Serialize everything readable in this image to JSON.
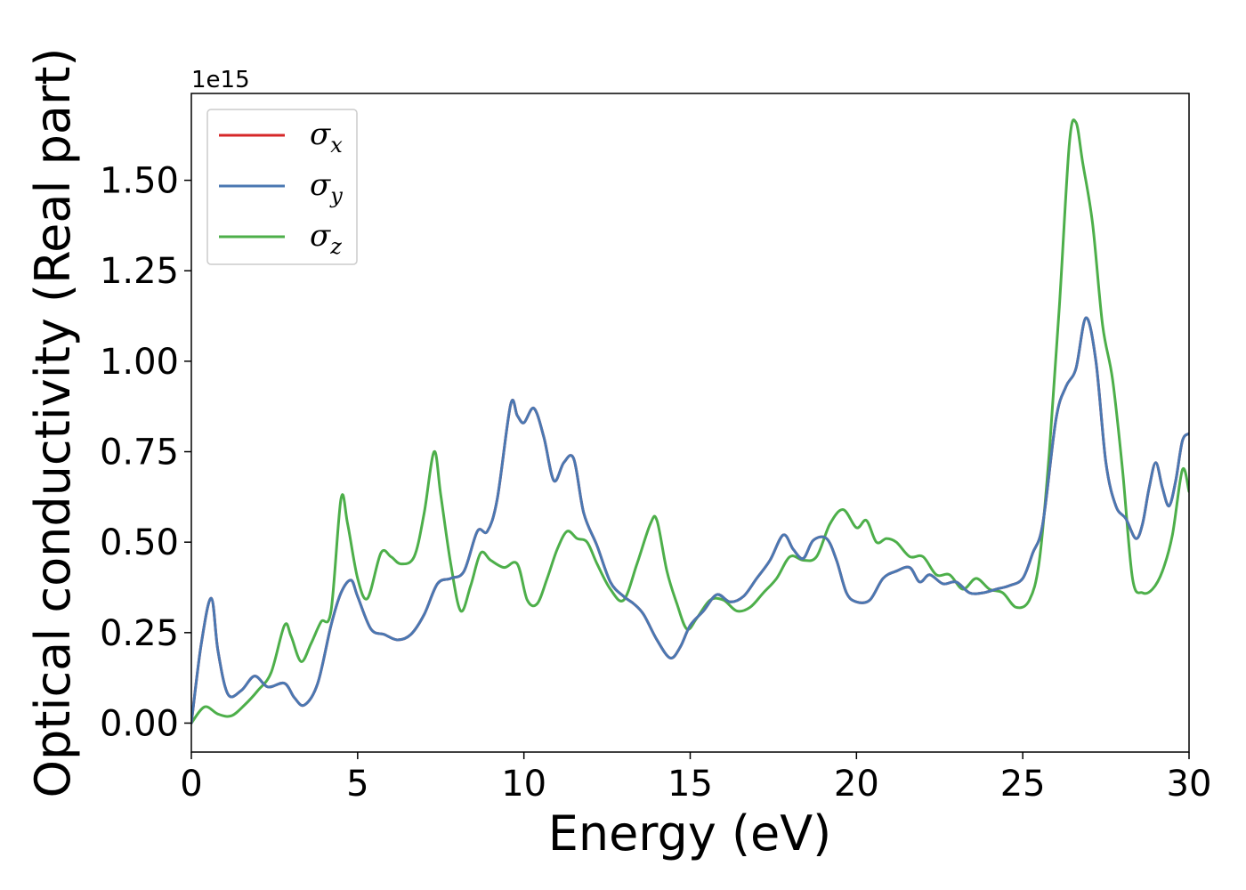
{
  "chart_data": {
    "type": "line",
    "xlabel": "Energy (eV)",
    "ylabel": "Optical conductivity (Real part)",
    "offset_text": "1e15",
    "xlim": [
      0,
      30
    ],
    "ylim": [
      -0.08,
      1.74
    ],
    "x_ticks": [
      0,
      5,
      10,
      15,
      20,
      25,
      30
    ],
    "x_tick_labels": [
      "0",
      "5",
      "10",
      "15",
      "20",
      "25",
      "30"
    ],
    "y_ticks": [
      0,
      0.25,
      0.5,
      0.75,
      1.0,
      1.25,
      1.5
    ],
    "y_tick_labels": [
      "0.00",
      "0.25",
      "0.50",
      "0.75",
      "1.00",
      "1.25",
      "1.50"
    ],
    "grid": false,
    "legend_position": "top-left",
    "series": [
      {
        "name": "σ",
        "subscript": "x",
        "color": "#d62728",
        "x": [
          0,
          0.3,
          0.6,
          0.8,
          1.1,
          1.5,
          1.9,
          2.3,
          2.8,
          3.1,
          3.4,
          3.8,
          4.2,
          4.5,
          4.8,
          5.0,
          5.4,
          5.8,
          6.2,
          6.6,
          7.0,
          7.4,
          7.8,
          8.2,
          8.6,
          8.9,
          9.2,
          9.6,
          9.8,
          10.0,
          10.3,
          10.6,
          10.9,
          11.2,
          11.5,
          11.8,
          12.2,
          12.6,
          13.0,
          13.3,
          13.6,
          14.0,
          14.4,
          14.7,
          15.0,
          15.4,
          15.8,
          16.2,
          16.6,
          17.0,
          17.4,
          17.8,
          18.1,
          18.4,
          18.7,
          19.1,
          19.4,
          19.7,
          20.0,
          20.4,
          20.8,
          21.2,
          21.6,
          21.9,
          22.2,
          22.6,
          23.0,
          23.4,
          23.8,
          24.2,
          24.6,
          25.0,
          25.3,
          25.6,
          26.0,
          26.3,
          26.6,
          26.9,
          27.2,
          27.5,
          27.8,
          28.1,
          28.4,
          28.6,
          28.8,
          29.0,
          29.2,
          29.4,
          29.6,
          29.8,
          30.0
        ],
        "y": [
          0.0,
          0.22,
          0.345,
          0.2,
          0.08,
          0.09,
          0.13,
          0.1,
          0.11,
          0.07,
          0.05,
          0.11,
          0.27,
          0.36,
          0.395,
          0.35,
          0.26,
          0.245,
          0.23,
          0.245,
          0.3,
          0.385,
          0.4,
          0.42,
          0.53,
          0.53,
          0.62,
          0.88,
          0.85,
          0.83,
          0.87,
          0.79,
          0.67,
          0.72,
          0.73,
          0.58,
          0.49,
          0.39,
          0.35,
          0.33,
          0.3,
          0.23,
          0.18,
          0.21,
          0.27,
          0.31,
          0.355,
          0.335,
          0.35,
          0.4,
          0.45,
          0.52,
          0.48,
          0.455,
          0.505,
          0.51,
          0.45,
          0.36,
          0.335,
          0.34,
          0.4,
          0.42,
          0.43,
          0.39,
          0.41,
          0.385,
          0.39,
          0.36,
          0.36,
          0.37,
          0.38,
          0.4,
          0.47,
          0.55,
          0.84,
          0.93,
          0.98,
          1.12,
          1.0,
          0.72,
          0.6,
          0.565,
          0.51,
          0.55,
          0.65,
          0.72,
          0.65,
          0.6,
          0.67,
          0.78,
          0.8
        ]
      },
      {
        "name": "σ",
        "subscript": "y",
        "color": "#4a78b2",
        "x": [
          0,
          0.3,
          0.6,
          0.8,
          1.1,
          1.5,
          1.9,
          2.3,
          2.8,
          3.1,
          3.4,
          3.8,
          4.2,
          4.5,
          4.8,
          5.0,
          5.4,
          5.8,
          6.2,
          6.6,
          7.0,
          7.4,
          7.8,
          8.2,
          8.6,
          8.9,
          9.2,
          9.6,
          9.8,
          10.0,
          10.3,
          10.6,
          10.9,
          11.2,
          11.5,
          11.8,
          12.2,
          12.6,
          13.0,
          13.3,
          13.6,
          14.0,
          14.4,
          14.7,
          15.0,
          15.4,
          15.8,
          16.2,
          16.6,
          17.0,
          17.4,
          17.8,
          18.1,
          18.4,
          18.7,
          19.1,
          19.4,
          19.7,
          20.0,
          20.4,
          20.8,
          21.2,
          21.6,
          21.9,
          22.2,
          22.6,
          23.0,
          23.4,
          23.8,
          24.2,
          24.6,
          25.0,
          25.3,
          25.6,
          26.0,
          26.3,
          26.6,
          26.9,
          27.2,
          27.5,
          27.8,
          28.1,
          28.4,
          28.6,
          28.8,
          29.0,
          29.2,
          29.4,
          29.6,
          29.8,
          30.0
        ],
        "y": [
          0.0,
          0.22,
          0.345,
          0.2,
          0.08,
          0.09,
          0.13,
          0.1,
          0.11,
          0.07,
          0.05,
          0.11,
          0.27,
          0.36,
          0.395,
          0.35,
          0.26,
          0.245,
          0.23,
          0.245,
          0.3,
          0.385,
          0.4,
          0.42,
          0.53,
          0.53,
          0.62,
          0.88,
          0.85,
          0.83,
          0.87,
          0.79,
          0.67,
          0.72,
          0.73,
          0.58,
          0.49,
          0.39,
          0.35,
          0.33,
          0.3,
          0.23,
          0.18,
          0.21,
          0.27,
          0.31,
          0.355,
          0.335,
          0.35,
          0.4,
          0.45,
          0.52,
          0.48,
          0.455,
          0.505,
          0.51,
          0.45,
          0.36,
          0.335,
          0.34,
          0.4,
          0.42,
          0.43,
          0.39,
          0.41,
          0.385,
          0.39,
          0.36,
          0.36,
          0.37,
          0.38,
          0.4,
          0.47,
          0.55,
          0.84,
          0.93,
          0.98,
          1.12,
          1.0,
          0.72,
          0.6,
          0.565,
          0.51,
          0.55,
          0.65,
          0.72,
          0.65,
          0.6,
          0.67,
          0.78,
          0.8
        ]
      },
      {
        "name": "σ",
        "subscript": "z",
        "color": "#4daf4a",
        "x": [
          0,
          0.4,
          0.8,
          1.2,
          1.6,
          2.0,
          2.4,
          2.8,
          3.0,
          3.3,
          3.6,
          3.9,
          4.2,
          4.5,
          4.7,
          5.0,
          5.3,
          5.7,
          6.0,
          6.3,
          6.7,
          7.0,
          7.3,
          7.5,
          7.8,
          8.1,
          8.4,
          8.7,
          9.0,
          9.4,
          9.8,
          10.1,
          10.4,
          10.7,
          11.0,
          11.3,
          11.6,
          11.9,
          12.2,
          12.6,
          13.0,
          13.4,
          13.8,
          14.0,
          14.3,
          14.6,
          14.9,
          15.2,
          15.6,
          16.0,
          16.4,
          16.8,
          17.2,
          17.6,
          18.0,
          18.4,
          18.8,
          19.2,
          19.6,
          20.0,
          20.3,
          20.6,
          20.9,
          21.2,
          21.6,
          22.0,
          22.4,
          22.8,
          23.2,
          23.6,
          24.0,
          24.4,
          24.8,
          25.2,
          25.5,
          25.8,
          26.1,
          26.4,
          26.6,
          26.8,
          27.1,
          27.4,
          27.7,
          28.0,
          28.3,
          28.6,
          28.9,
          29.2,
          29.5,
          29.8,
          30.0
        ],
        "y": [
          0.0,
          0.045,
          0.025,
          0.02,
          0.05,
          0.09,
          0.14,
          0.27,
          0.24,
          0.17,
          0.22,
          0.28,
          0.31,
          0.62,
          0.55,
          0.4,
          0.345,
          0.47,
          0.46,
          0.44,
          0.46,
          0.58,
          0.75,
          0.63,
          0.44,
          0.31,
          0.38,
          0.47,
          0.45,
          0.43,
          0.44,
          0.34,
          0.33,
          0.4,
          0.48,
          0.53,
          0.51,
          0.5,
          0.44,
          0.37,
          0.34,
          0.44,
          0.55,
          0.56,
          0.42,
          0.33,
          0.26,
          0.29,
          0.34,
          0.34,
          0.31,
          0.32,
          0.36,
          0.4,
          0.46,
          0.45,
          0.46,
          0.55,
          0.59,
          0.54,
          0.56,
          0.5,
          0.51,
          0.5,
          0.46,
          0.46,
          0.41,
          0.41,
          0.37,
          0.4,
          0.37,
          0.36,
          0.32,
          0.34,
          0.45,
          0.75,
          1.15,
          1.6,
          1.66,
          1.55,
          1.38,
          1.1,
          0.95,
          0.7,
          0.4,
          0.36,
          0.37,
          0.42,
          0.52,
          0.7,
          0.64
        ]
      }
    ]
  }
}
